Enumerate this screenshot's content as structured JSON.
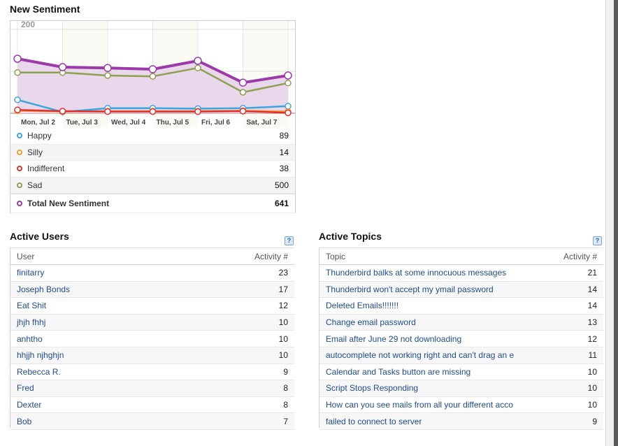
{
  "sentiment": {
    "title": "New Sentiment",
    "legend": [
      {
        "label": "Happy",
        "value": "89",
        "color": "#3aa6dd"
      },
      {
        "label": "Silly",
        "value": "14",
        "color": "#f0a030"
      },
      {
        "label": "Indifferent",
        "value": "38",
        "color": "#e03030"
      },
      {
        "label": "Sad",
        "value": "500",
        "color": "#8ea050"
      }
    ],
    "total": {
      "label": "Total New Sentiment",
      "value": "641",
      "color": "#9b3aa8"
    }
  },
  "chart_data": {
    "type": "line",
    "x": [
      "Mon, Jul 2",
      "Tue, Jul 3",
      "Wed, Jul 4",
      "Thu, Jul 5",
      "Fri, Jul 6",
      "Sat, Jul 7",
      ""
    ],
    "y_ticks": [
      "200",
      "100",
      "0"
    ],
    "ylim": [
      0,
      200
    ],
    "grid": true,
    "series": [
      {
        "name": "Total New Sentiment",
        "color": "#9b3aa8",
        "values": [
          130,
          110,
          108,
          105,
          125,
          73,
          90
        ],
        "fill": true
      },
      {
        "name": "Sad",
        "color": "#8ea050",
        "values": [
          97,
          97,
          90,
          88,
          108,
          50,
          72
        ]
      },
      {
        "name": "Happy",
        "color": "#3aa6dd",
        "values": [
          32,
          3,
          12,
          12,
          11,
          12,
          17
        ]
      },
      {
        "name": "Silly",
        "color": "#f0a030",
        "values": [
          6,
          4,
          5,
          5,
          5,
          6,
          4
        ]
      },
      {
        "name": "Indifferent",
        "color": "#e03030",
        "values": [
          8,
          5,
          4,
          4,
          4,
          5,
          1
        ]
      }
    ]
  },
  "users": {
    "title": "Active Users",
    "help": "?",
    "col_user": "User",
    "col_activity": "Activity #",
    "rows": [
      {
        "name": "finitarry",
        "activity": "23"
      },
      {
        "name": "Joseph Bonds",
        "activity": "17"
      },
      {
        "name": "Eat Shit",
        "activity": "12"
      },
      {
        "name": "jhjh fhhj",
        "activity": "10"
      },
      {
        "name": "anhtho",
        "activity": "10"
      },
      {
        "name": "hhjjh njhghjn",
        "activity": "10"
      },
      {
        "name": "Rebecca R.",
        "activity": "9"
      },
      {
        "name": "Fred",
        "activity": "8"
      },
      {
        "name": "Dexter",
        "activity": "8"
      },
      {
        "name": "Bob",
        "activity": "7"
      }
    ]
  },
  "topics": {
    "title": "Active Topics",
    "help": "?",
    "col_topic": "Topic",
    "col_activity": "Activity #",
    "rows": [
      {
        "name": "Thunderbird balks at some innocuous messages",
        "activity": "21"
      },
      {
        "name": "Thunderbird won't accept my ymail password",
        "activity": "14"
      },
      {
        "name": "Deleted Emails!!!!!!!",
        "activity": "14"
      },
      {
        "name": "Change email password",
        "activity": "13"
      },
      {
        "name": "Email after June 29 not downloading",
        "activity": "12"
      },
      {
        "name": "autocomplete not working right and can't drag an e",
        "activity": "11"
      },
      {
        "name": "Calendar and Tasks button are missing",
        "activity": "10"
      },
      {
        "name": "Script Stops Responding",
        "activity": "10"
      },
      {
        "name": "How can you see mails from all your different acco",
        "activity": "10"
      },
      {
        "name": "failed to connect to server",
        "activity": "9"
      }
    ]
  }
}
